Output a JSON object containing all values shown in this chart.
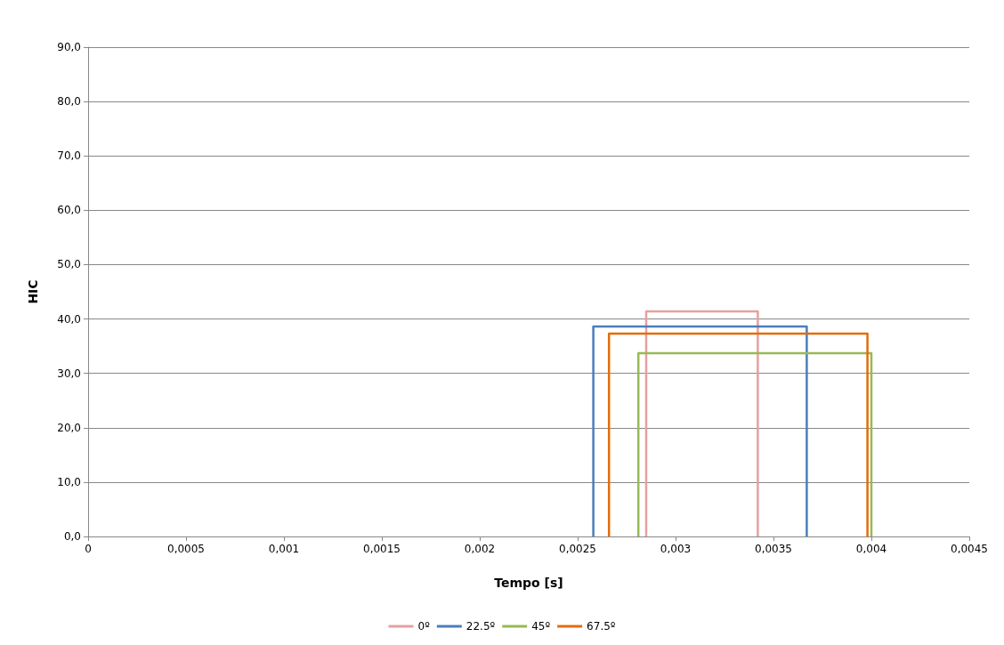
{
  "chart_data": {
    "type": "line",
    "xlabel": "Tempo [s]",
    "ylabel": "HIC",
    "series": [
      {
        "name": "0º",
        "color": "#e6a0a0",
        "x": [
          0.00285,
          0.00285,
          0.00342,
          0.00342
        ],
        "values": [
          0,
          41.4,
          41.4,
          0
        ]
      },
      {
        "name": "22.5º",
        "color": "#4a7ebb",
        "x": [
          0.00258,
          0.00258,
          0.00367,
          0.00367
        ],
        "values": [
          0,
          38.6,
          38.6,
          0
        ]
      },
      {
        "name": "45º",
        "color": "#98b954",
        "x": [
          0.00281,
          0.00281,
          0.004,
          0.004
        ],
        "values": [
          0,
          33.7,
          33.7,
          0
        ]
      },
      {
        "name": "67.5º",
        "color": "#e46c0a",
        "x": [
          0.00266,
          0.00266,
          0.00398,
          0.00398
        ],
        "values": [
          0,
          37.3,
          37.3,
          0
        ]
      }
    ],
    "xlim": [
      0,
      0.0045
    ],
    "xticks": [
      0,
      {
        "value": 0.0005,
        "label": "0,0005"
      },
      {
        "value": 0.001,
        "label": "0,001"
      },
      {
        "value": 0.0015,
        "label": "0,0015"
      },
      {
        "value": 0.002,
        "label": "0,002"
      },
      {
        "value": 0.0025,
        "label": "0,0025"
      },
      {
        "value": 0.003,
        "label": "0,003"
      },
      {
        "value": 0.0035,
        "label": "0,0035"
      },
      {
        "value": 0.004,
        "label": "0,004"
      },
      {
        "value": 0.0045,
        "label": "0,0045"
      }
    ],
    "ylim": [
      0,
      90
    ],
    "yticks": [
      {
        "value": 0,
        "label": "0,0"
      },
      {
        "value": 10,
        "label": "10,0"
      },
      {
        "value": 20,
        "label": "20,0"
      },
      {
        "value": 30,
        "label": "30,0"
      },
      {
        "value": 40,
        "label": "40,0"
      },
      {
        "value": 50,
        "label": "50,0"
      },
      {
        "value": 60,
        "label": "60,0"
      },
      {
        "value": 70,
        "label": "70,0"
      },
      {
        "value": 80,
        "label": "80,0"
      },
      {
        "value": 90,
        "label": "90,0"
      }
    ],
    "grid": "y",
    "legend": "bottom",
    "marker": "none",
    "line_style": "solid"
  }
}
